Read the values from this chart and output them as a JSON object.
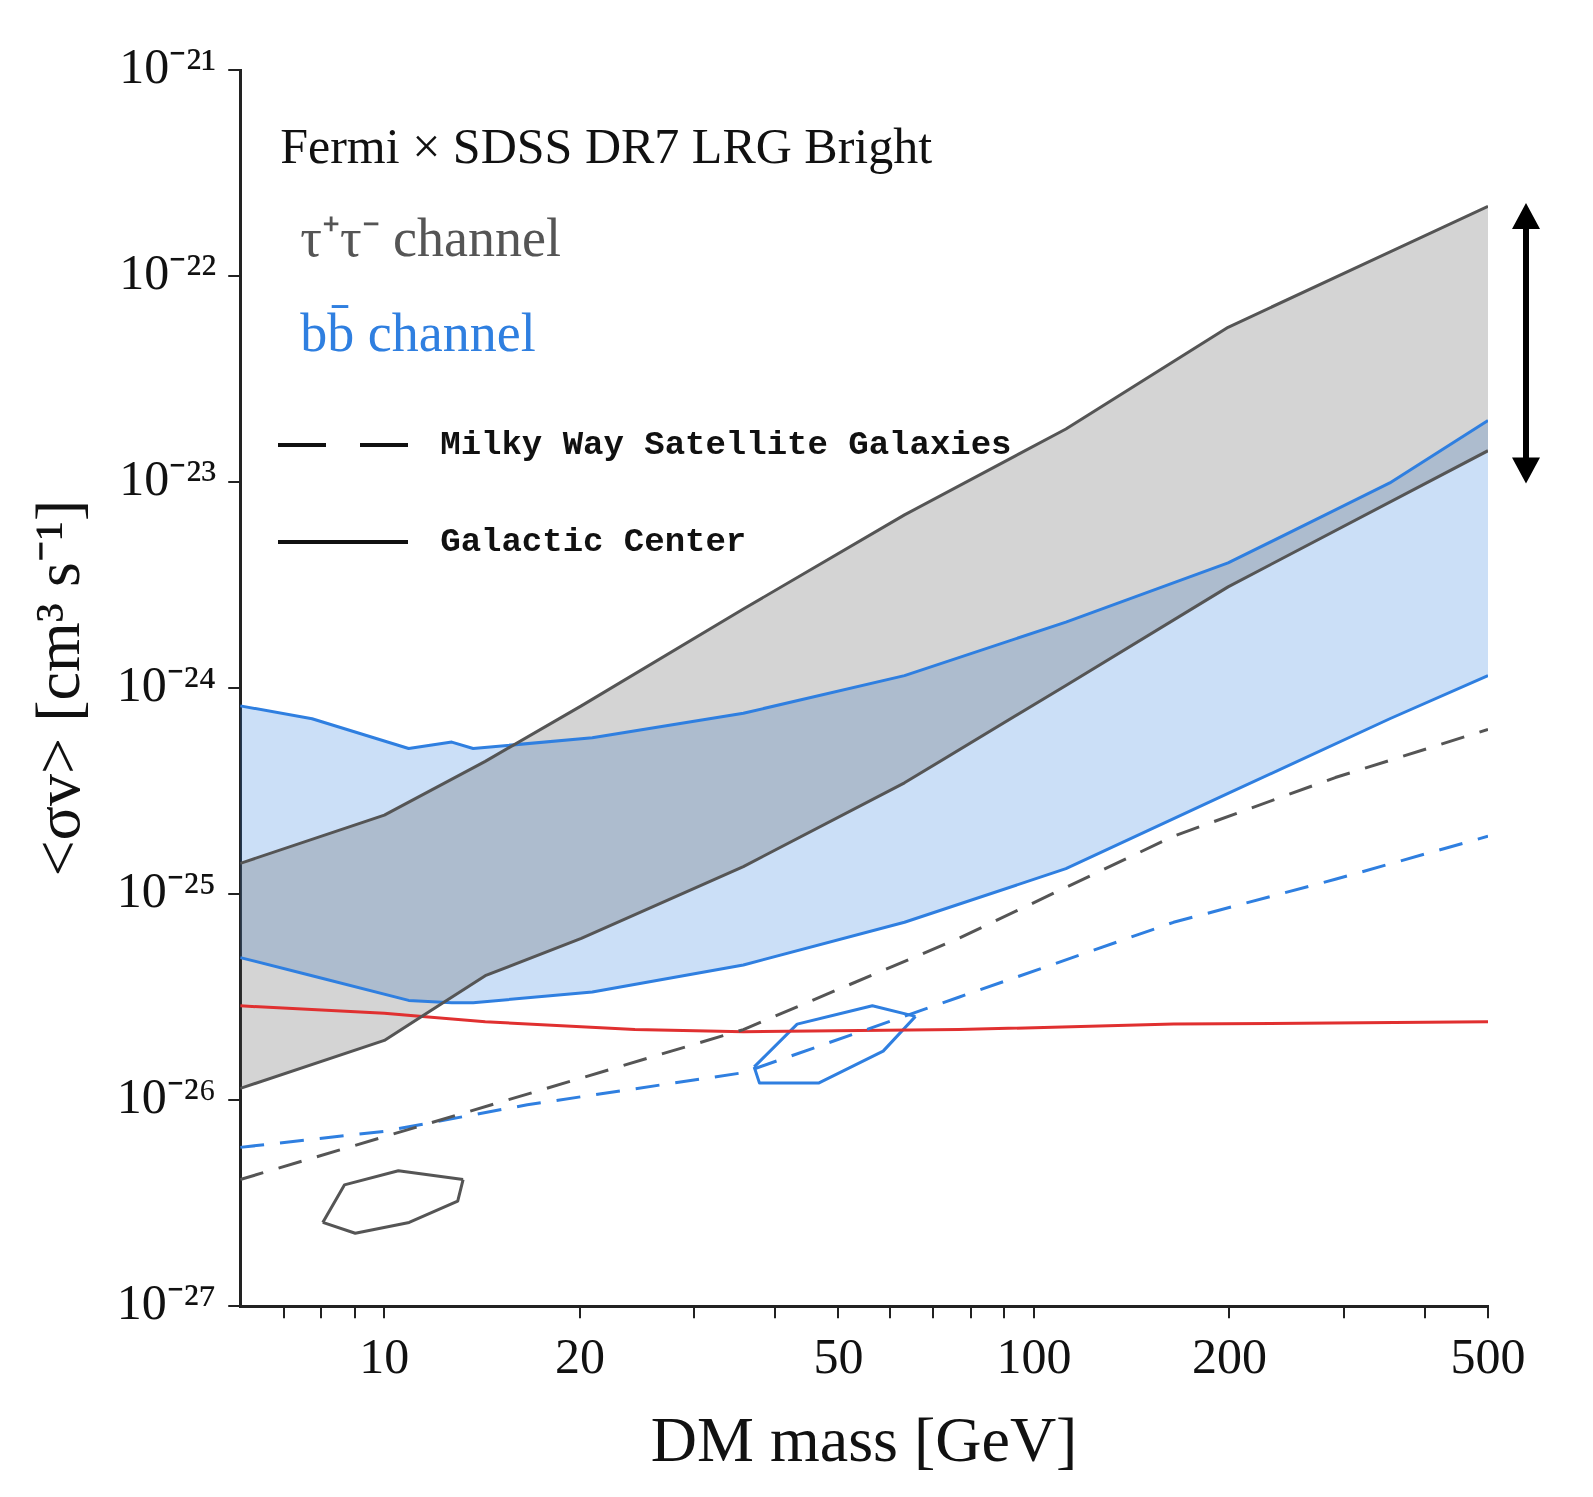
{
  "chart_data": {
    "type": "line",
    "title": "Fermi × SDSS DR7 LRG Bright",
    "xlabel": "DM mass [GeV]",
    "ylabel": "<σv> [cm³ s⁻¹]",
    "log": "xy",
    "legend": "top left",
    "xlim": [
      6,
      500
    ],
    "ylim": [
      1e-27,
      1e-21
    ],
    "xticks": [
      {
        "value": 7,
        "label": null
      },
      {
        "value": 8,
        "label": null
      },
      {
        "value": 9,
        "label": null
      },
      10,
      20,
      {
        "value": 30,
        "label": null
      },
      {
        "value": 40,
        "label": null
      },
      50,
      {
        "value": 60,
        "label": null
      },
      {
        "value": 70,
        "label": null
      },
      {
        "value": 80,
        "label": null
      },
      {
        "value": 90,
        "label": null
      },
      100,
      200,
      {
        "value": 300,
        "label": null
      },
      {
        "value": 400,
        "label": null
      },
      500
    ],
    "yticks": [
      {
        "value": 1e-27,
        "label": "10⁻²⁷"
      },
      {
        "value": 1e-26,
        "label": "10⁻²⁶"
      },
      {
        "value": 1e-25,
        "label": "10⁻²⁵"
      },
      {
        "value": 1e-24,
        "label": "10⁻²⁴"
      },
      {
        "value": 1e-23,
        "label": "10⁻²³"
      },
      {
        "value": 1e-22,
        "label": "10⁻²²"
      },
      {
        "value": 1e-21,
        "label": "10⁻²¹"
      }
    ],
    "annotations": [
      "Milky Way Satellite Galaxies",
      "Galactic Center"
    ],
    "series": [
      {
        "name": "τ⁺τ⁻ channel",
        "color": "#555555",
        "x": [
          6,
          10,
          14.3,
          20.1,
          35.7,
          63.2,
          112,
          199,
          500
        ],
        "values": [
          1.41e-25,
          2.42e-25,
          4.41e-25,
          8.2e-25,
          2.42e-24,
          6.93e-24,
          1.81e-23,
          5.64e-23,
          2.18e-22
        ],
        "upper": [
          1.41e-25,
          2.42e-25,
          4.41e-25,
          8.2e-25,
          2.42e-24,
          6.93e-24,
          1.81e-23,
          5.64e-23,
          2.18e-22
        ],
        "lower": [
          1.14e-26,
          1.95e-26,
          4.02e-26,
          6.1e-26,
          1.36e-25,
          3.47e-25,
          1.03e-24,
          3.1e-24,
          1.42e-23
        ]
      },
      {
        "name": "bb̄ channel",
        "color": "#2f7fe0",
        "x": [
          6,
          7.74,
          10.9,
          12.7,
          13.7,
          20.9,
          35.7,
          63.2,
          112,
          199,
          353,
          500
        ],
        "values": [
          8.2e-25,
          7.1e-25,
          5.09e-25,
          5.47e-25,
          5.09e-25,
          5.74e-25,
          7.55e-25,
          1.15e-24,
          2.09e-24,
          4.05e-24,
          9.9e-24,
          1.99e-23
        ],
        "upper": [
          8.2e-25,
          7.1e-25,
          5.09e-25,
          5.47e-25,
          5.09e-25,
          5.74e-25,
          7.55e-25,
          1.15e-24,
          2.09e-24,
          4.05e-24,
          9.9e-24,
          1.99e-23
        ],
        "lower": [
          4.92e-26,
          4.02e-26,
          3.05e-26,
          2.97e-26,
          2.97e-26,
          3.35e-26,
          4.53e-26,
          7.3e-26,
          1.33e-25,
          3.08e-25,
          7.1e-25,
          1.15e-24
        ]
      },
      {
        "color": "#555555",
        "x": [
          6,
          10,
          14.3,
          20.1,
          35.7,
          63.2,
          112,
          199,
          500
        ],
        "values": [
          1.14e-26,
          1.95e-26,
          4.02e-26,
          6.1e-26,
          1.36e-25,
          3.47e-25,
          1.03e-24,
          3.1e-24,
          1.42e-23
        ]
      },
      {
        "color": "#2f7fe0",
        "x": [
          6,
          7.74,
          10.9,
          12.7,
          13.7,
          20.9,
          35.7,
          63.2,
          112,
          199,
          353,
          500
        ],
        "values": [
          4.92e-26,
          4.02e-26,
          3.05e-26,
          2.97e-26,
          2.97e-26,
          3.35e-26,
          4.53e-26,
          7.3e-26,
          1.33e-25,
          3.08e-25,
          7.1e-25,
          1.15e-24
        ]
      },
      {
        "color": "#555555",
        "line_style": "dashed",
        "x": [
          6,
          10,
          16.6,
          35.7,
          76.6,
          164,
          291,
          500
        ],
        "values": [
          4.12e-27,
          6.65e-27,
          1.07e-26,
          2.2e-26,
          6.1e-26,
          1.91e-25,
          3.68e-25,
          6.3e-25
        ]
      },
      {
        "color": "#2f7fe0",
        "line_style": "dashed",
        "x": [
          6,
          10,
          16.6,
          35.7,
          76.6,
          164,
          291,
          500
        ],
        "values": [
          5.9e-27,
          7.06e-27,
          9.5e-27,
          1.36e-26,
          3.16e-26,
          7.3e-26,
          1.18e-25,
          1.91e-25
        ]
      },
      {
        "color": "#e03030",
        "x": [
          6,
          10,
          14.3,
          24.3,
          35.7,
          76.6,
          164,
          500
        ],
        "values": [
          2.87e-26,
          2.64e-26,
          2.4e-26,
          2.2e-26,
          2.15e-26,
          2.2e-26,
          2.34e-26,
          2.4e-26
        ]
      },
      {
        "color": "#555555",
        "x": [
          8.04,
          8.68,
          10.51,
          13.22
        ],
        "values": [
          2.55e-27,
          3.88e-27,
          4.54e-27,
          4.12e-27
        ]
      },
      {
        "color": "#555555",
        "x": [
          8.04,
          9.02,
          10.92,
          12.97,
          13.22
        ],
        "values": [
          2.55e-27,
          2.26e-27,
          2.55e-27,
          3.24e-27,
          4.12e-27
        ]
      },
      {
        "color": "#2f7fe0",
        "x": [
          37.1,
          43.2,
          56.4,
          65.7
        ],
        "values": [
          1.45e-26,
          2.34e-26,
          2.87e-26,
          2.55e-26
        ]
      },
      {
        "color": "#2f7fe0",
        "x": [
          37.1,
          37.8,
          46.6,
          58.6,
          65.7
        ],
        "values": [
          1.45e-26,
          1.21e-26,
          1.21e-26,
          1.73e-26,
          2.55e-26
        ]
      }
    ]
  }
}
